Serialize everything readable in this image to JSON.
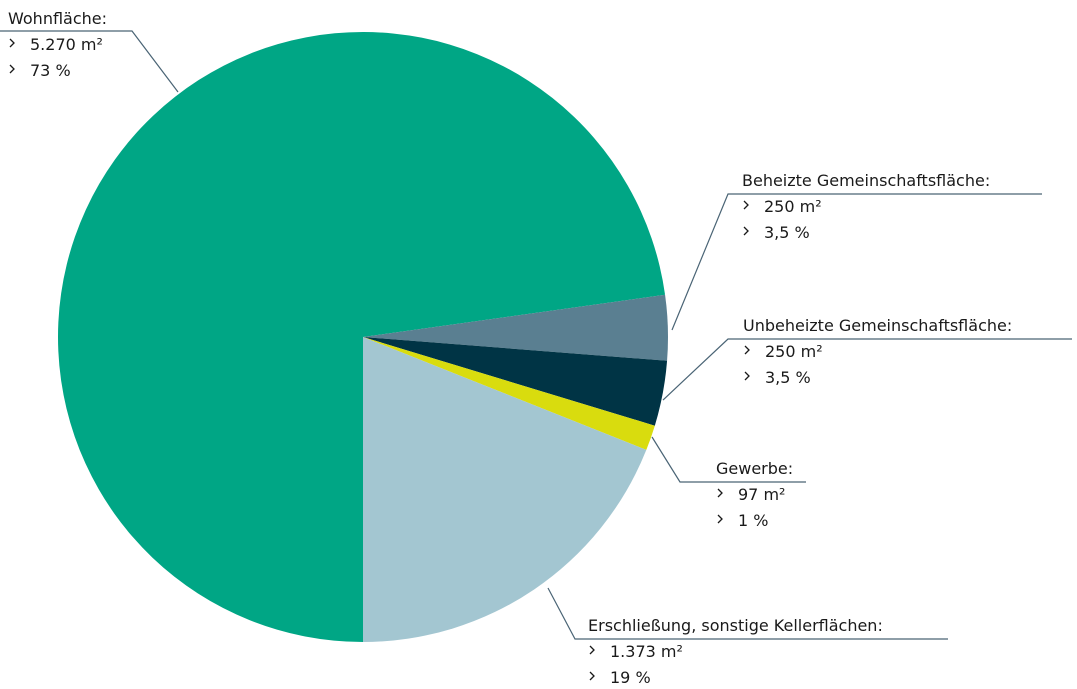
{
  "chart_data": {
    "type": "pie",
    "categories": [
      "Wohnfläche:",
      "Beheizte Gemeinschaftsfläche:",
      "Unbeheizte Gemeinschaftsfläche:",
      "Gewerbe:",
      "Erschließung, sonstige Kellerflächen:"
    ],
    "values": [
      5270,
      250,
      250,
      97,
      1373
    ],
    "value_labels": [
      "5.270 m²",
      "250 m²",
      "250 m²",
      "97 m²",
      "1.373 m²"
    ],
    "share_labels": [
      "73 %",
      "3,5 %",
      "3,5 %",
      "1 %",
      "19 %"
    ],
    "colors": [
      "#00a685",
      "#5a7f91",
      "#003445",
      "#d9dc0e",
      "#a3c6d1"
    ]
  }
}
